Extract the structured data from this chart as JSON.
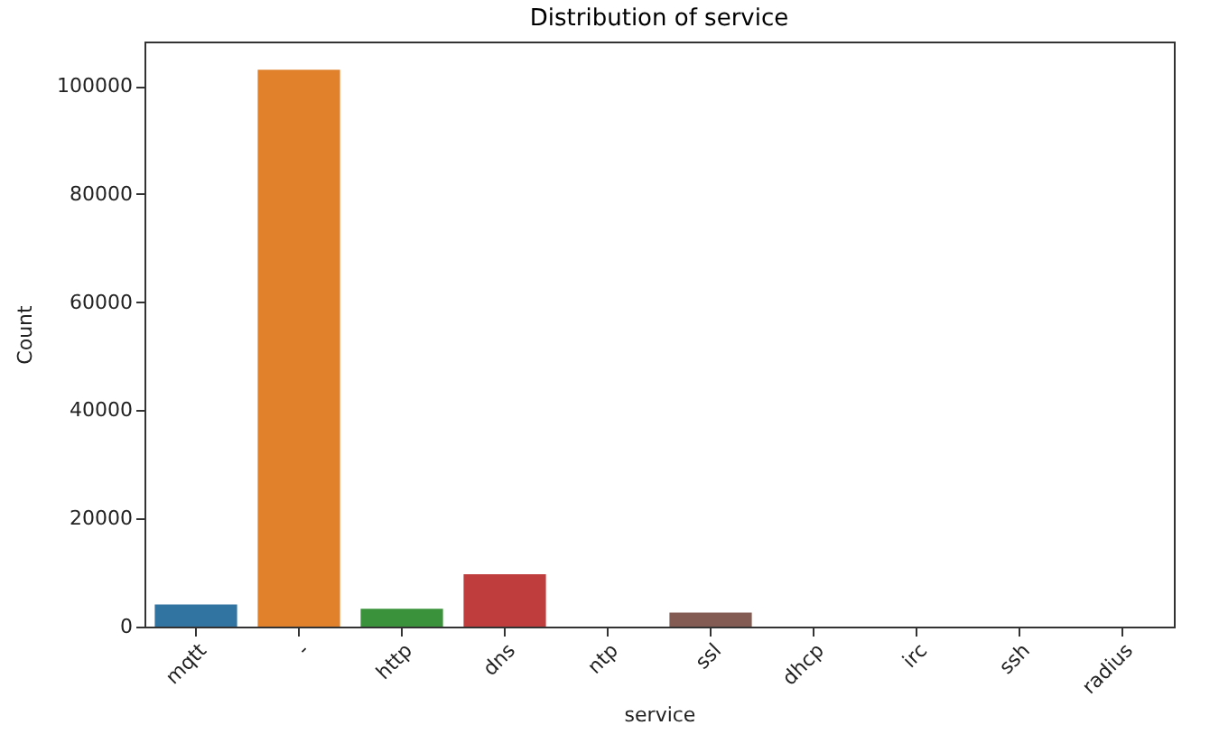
{
  "chart_data": {
    "type": "bar",
    "title": "Distribution of service",
    "xlabel": "service",
    "ylabel": "Count",
    "categories": [
      "mqtt",
      "-",
      "http",
      "dns",
      "ntp",
      "ssl",
      "dhcp",
      "irc",
      "ssh",
      "radius"
    ],
    "values": [
      4100,
      103000,
      3300,
      9700,
      0,
      2600,
      0,
      0,
      0,
      0
    ],
    "colors": [
      "#3274a1",
      "#e1812c",
      "#3a923a",
      "#c03d3e",
      "#9372b2",
      "#845b53",
      "#d684bd",
      "#7f7f7f",
      "#a9aa35",
      "#338eb8"
    ],
    "ylim": [
      0,
      108200
    ],
    "yticks": [
      0,
      20000,
      40000,
      60000,
      80000,
      100000
    ],
    "grid": false
  }
}
